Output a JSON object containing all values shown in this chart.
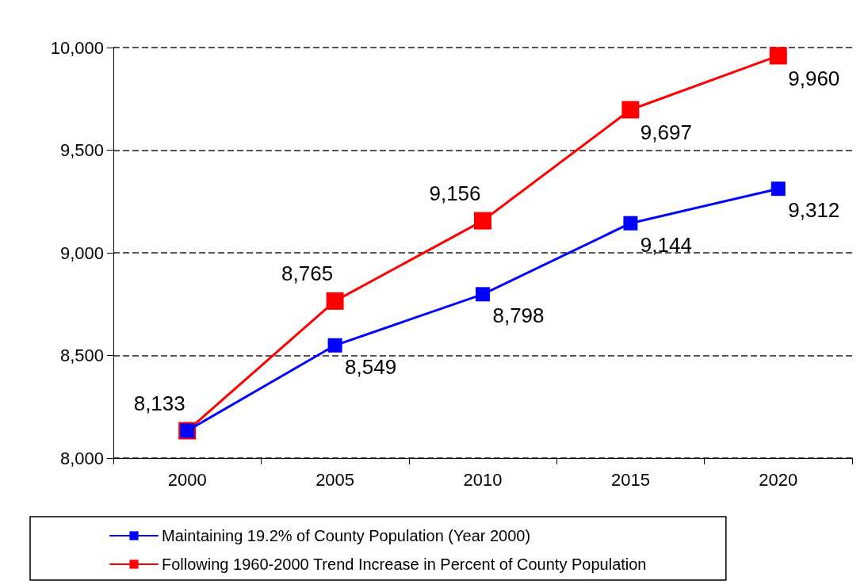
{
  "chart_data": {
    "type": "line",
    "categories": [
      "2000",
      "2005",
      "2010",
      "2015",
      "2020"
    ],
    "series": [
      {
        "name": "Maintaining 19.2% of County Population (Year 2000)",
        "color": "#0000ff",
        "values": [
          8133,
          8549,
          8798,
          9144,
          9312
        ],
        "value_labels": [
          null,
          "8,549",
          "8,798",
          "9,144",
          "9,312"
        ]
      },
      {
        "name": "Following 1960-2000 Trend Increase in Percent of County Population",
        "color": "#ff0000",
        "values": [
          8133,
          8765,
          9156,
          9697,
          9960
        ],
        "value_labels": [
          "8,133",
          "8,765",
          "9,156",
          "9,697",
          "9,960"
        ]
      }
    ],
    "ylim": [
      8000,
      10000
    ],
    "yticks": [
      {
        "value": 8000,
        "label": "8,000"
      },
      {
        "value": 8500,
        "label": "8,500"
      },
      {
        "value": 9000,
        "label": "9,000"
      },
      {
        "value": 9500,
        "label": "9,500"
      },
      {
        "value": 10000,
        "label": "10,000"
      }
    ],
    "grid": "y",
    "legend": "bottom",
    "marker": "square",
    "line_style": "solid"
  }
}
